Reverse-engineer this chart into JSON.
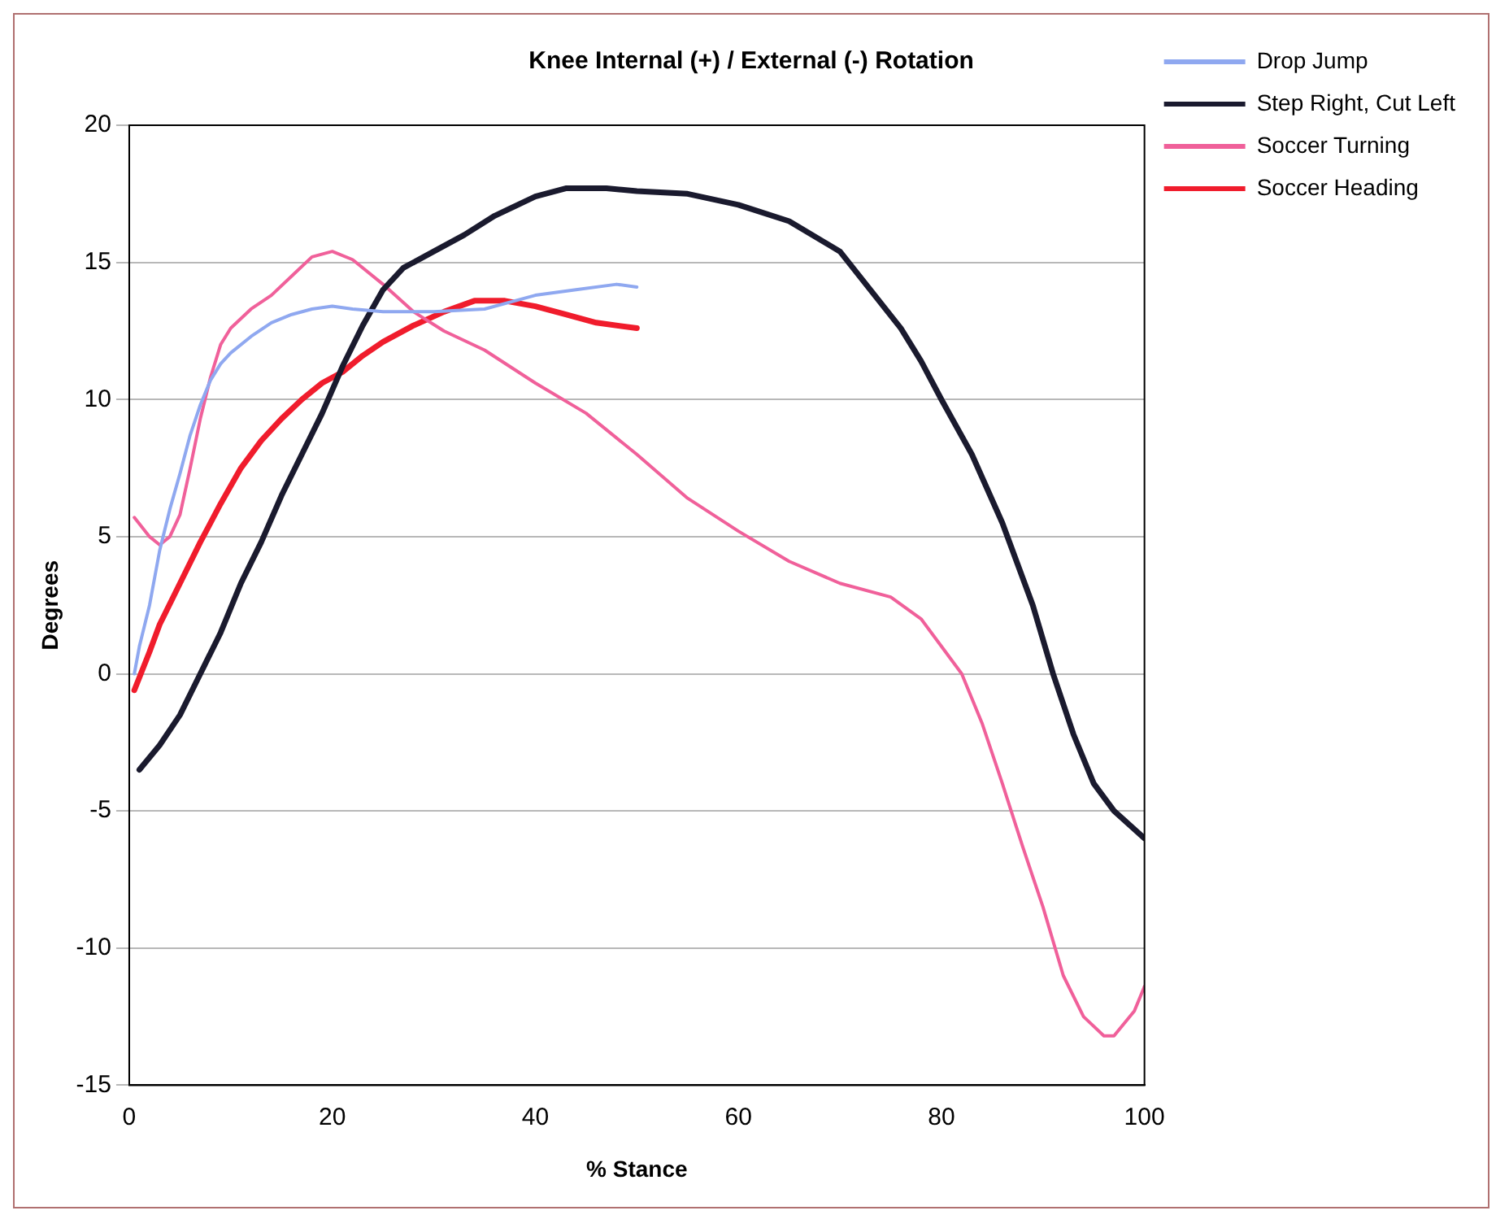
{
  "chart_data": {
    "type": "line",
    "title": "Knee Internal (+) / External (-) Rotation",
    "xlabel": "% Stance",
    "ylabel": "Degrees",
    "xlim": [
      0,
      100
    ],
    "xticks": [
      0,
      20,
      40,
      60,
      80,
      100
    ],
    "ylim": [
      -15,
      20
    ],
    "yticks": [
      -15,
      -10,
      -5,
      0,
      5,
      10,
      15,
      20
    ],
    "grid": "y",
    "legend": "top right",
    "marker": "none",
    "line_style": "solid",
    "series": [
      {
        "name": "Drop Jump",
        "color": "#8fa8f0",
        "x": [
          0.5,
          1,
          2,
          3,
          4,
          5,
          6,
          7,
          8,
          9,
          10,
          12,
          14,
          16,
          18,
          20,
          22,
          25,
          30,
          35,
          38,
          40,
          44,
          48,
          50
        ],
        "values": [
          0,
          1,
          2.5,
          4.5,
          6,
          7.3,
          8.7,
          9.8,
          10.7,
          11.3,
          11.7,
          12.3,
          12.8,
          13.1,
          13.3,
          13.4,
          13.3,
          13.2,
          13.2,
          13.3,
          13.6,
          13.8,
          14,
          14.2,
          14.1
        ]
      },
      {
        "name": "Step Right, Cut Left",
        "color": "#1a1a2e",
        "x": [
          1,
          3,
          5,
          7,
          9,
          11,
          13,
          15,
          17,
          19,
          21,
          23,
          25,
          27,
          30,
          33,
          36,
          40,
          43,
          47,
          50,
          55,
          60,
          65,
          70,
          73,
          76,
          78,
          80,
          83,
          86,
          89,
          91,
          93,
          95,
          97,
          100
        ],
        "values": [
          -3.5,
          -2.6,
          -1.5,
          0,
          1.5,
          3.3,
          4.8,
          6.5,
          8,
          9.5,
          11.2,
          12.7,
          14,
          14.8,
          15.4,
          16,
          16.7,
          17.4,
          17.7,
          17.7,
          17.6,
          17.5,
          17.1,
          16.5,
          15.4,
          14,
          12.6,
          11.4,
          10,
          8,
          5.5,
          2.5,
          0,
          -2.2,
          -4,
          -5,
          -6
        ]
      },
      {
        "name": "Soccer Turning",
        "color": "#f0609a",
        "x": [
          0.5,
          2,
          3,
          4,
          5,
          6,
          7,
          8,
          9,
          10,
          12,
          14,
          16,
          18,
          20,
          22,
          25,
          28,
          31,
          35,
          40,
          45,
          50,
          55,
          60,
          65,
          70,
          75,
          78,
          80,
          82,
          84,
          86,
          88,
          90,
          92,
          94,
          96,
          97,
          99,
          100
        ],
        "values": [
          5.7,
          5,
          4.7,
          5,
          5.8,
          7.5,
          9.3,
          10.8,
          12,
          12.6,
          13.3,
          13.8,
          14.5,
          15.2,
          15.4,
          15.1,
          14.2,
          13.2,
          12.5,
          11.8,
          10.6,
          9.5,
          8,
          6.4,
          5.2,
          4.1,
          3.3,
          2.8,
          2,
          1,
          0,
          -1.8,
          -4,
          -6.3,
          -8.5,
          -11,
          -12.5,
          -13.2,
          -13.2,
          -12.3,
          -11.4
        ]
      },
      {
        "name": "Soccer Heading",
        "color": "#f01c2c",
        "x": [
          0.5,
          2,
          3,
          5,
          7,
          9,
          11,
          13,
          15,
          17,
          19,
          21,
          23,
          25,
          28,
          31,
          34,
          37,
          40,
          43,
          46,
          50
        ],
        "values": [
          -0.6,
          0.8,
          1.8,
          3.3,
          4.8,
          6.2,
          7.5,
          8.5,
          9.3,
          10,
          10.6,
          11,
          11.6,
          12.1,
          12.7,
          13.2,
          13.6,
          13.6,
          13.4,
          13.1,
          12.8,
          12.6
        ]
      }
    ]
  }
}
